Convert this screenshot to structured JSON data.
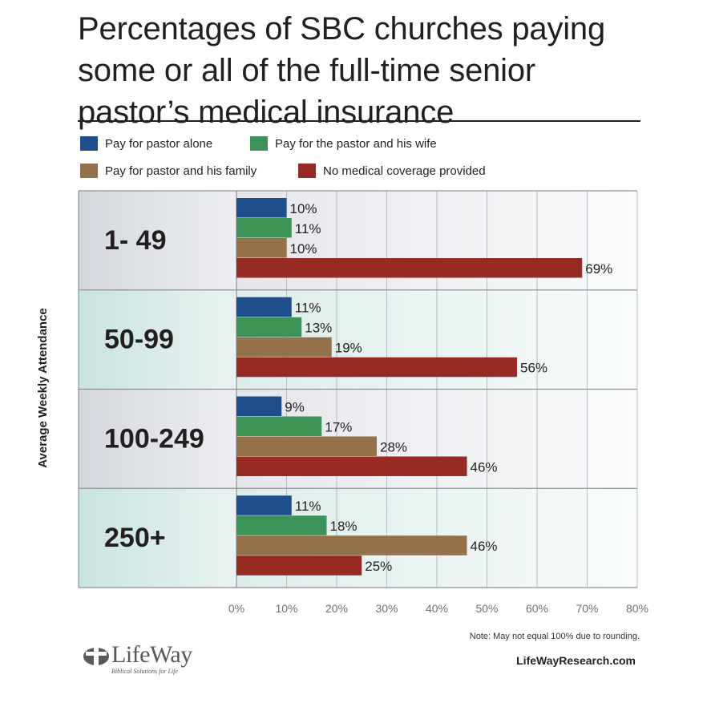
{
  "title": "Percentages of SBC churches paying some or all of the full-time senior pastor’s medical insurance",
  "legend": [
    {
      "name": "Pay for pastor alone",
      "color": "#1f4e8c"
    },
    {
      "name": "Pay for the pastor and his wife",
      "color": "#3c9356"
    },
    {
      "name": "Pay for pastor and his family",
      "color": "#93714a"
    },
    {
      "name": "No medical coverage provided",
      "color": "#982a26"
    }
  ],
  "note": "Note: May not equal 100% due to rounding.",
  "website": "LifeWayResearch.com",
  "logo": {
    "text": "LifeWay",
    "tagline": "Biblical Solutions for Life"
  },
  "chart_data": {
    "type": "bar",
    "orientation": "horizontal",
    "title": "Percentages of SBC churches paying some or all of the full-time senior pastor’s medical insurance",
    "ylabel": "Average Weekly Attendance",
    "xlabel": "",
    "categories": [
      "1- 49",
      "50-99",
      "100-249",
      "250+"
    ],
    "series": [
      {
        "name": "Pay for pastor alone",
        "color": "#1f4e8c",
        "values": [
          10,
          11,
          9,
          11
        ]
      },
      {
        "name": "Pay for the pastor and his wife",
        "color": "#3c9356",
        "values": [
          11,
          13,
          17,
          18
        ]
      },
      {
        "name": "Pay for pastor and his family",
        "color": "#93714a",
        "values": [
          10,
          19,
          28,
          46
        ]
      },
      {
        "name": "No medical coverage provided",
        "color": "#982a26",
        "values": [
          69,
          56,
          46,
          25
        ]
      }
    ],
    "xlim": [
      0,
      80
    ],
    "xticks": [
      "0%",
      "10%",
      "20%",
      "30%",
      "40%",
      "50%",
      "60%",
      "70%",
      "80%"
    ],
    "value_suffix": "%",
    "grid": true,
    "legend_position": "top"
  }
}
